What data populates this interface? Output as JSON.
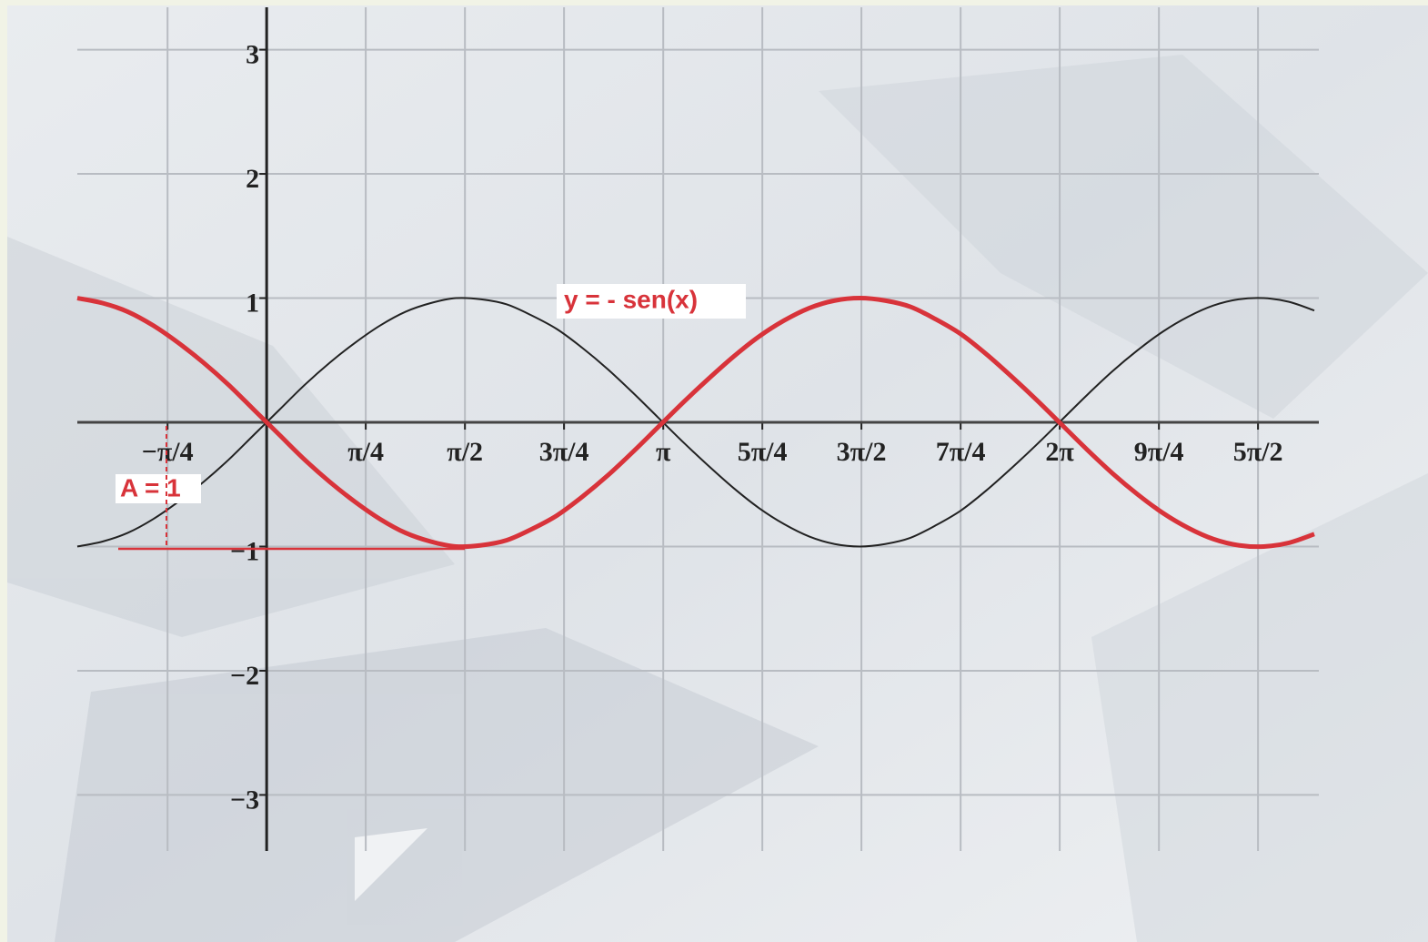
{
  "chart_data": {
    "type": "line",
    "x": [
      -1.5,
      -1.3,
      -1.1,
      -0.9,
      -0.7,
      -0.5,
      -0.3,
      -0.1,
      0.1,
      0.3,
      0.5,
      0.7,
      0.9,
      1.1,
      1.3,
      1.5,
      1.7,
      1.9,
      2.1,
      2.3,
      2.5,
      2.7,
      2.9,
      3.1,
      3.3,
      3.5,
      3.7,
      3.9,
      4.1,
      4.3,
      4.5,
      4.7,
      4.9,
      5.1,
      5.3,
      5.5,
      5.7,
      5.9,
      6.1,
      6.3,
      6.5,
      6.7,
      6.9,
      7.1,
      7.3,
      7.5,
      7.7,
      7.9,
      8.1,
      8.3
    ],
    "series": [
      {
        "color": "#222222",
        "values": [
          -1.0,
          -0.96,
          -0.89,
          -0.78,
          -0.64,
          -0.48,
          -0.3,
          -0.1,
          0.1,
          0.3,
          0.48,
          0.64,
          0.78,
          0.89,
          0.96,
          1.0,
          0.99,
          0.95,
          0.86,
          0.75,
          0.6,
          0.43,
          0.24,
          0.04,
          -0.16,
          -0.35,
          -0.53,
          -0.69,
          -0.82,
          -0.92,
          -0.98,
          -1.0,
          -0.98,
          -0.93,
          -0.83,
          -0.71,
          -0.55,
          -0.37,
          -0.18,
          0.02,
          0.22,
          0.41,
          0.58,
          0.73,
          0.85,
          0.94,
          0.99,
          1.0,
          0.97,
          0.9
        ]
      },
      {
        "color": "#d8333a",
        "values": [
          1.0,
          0.96,
          0.89,
          0.78,
          0.64,
          0.48,
          0.3,
          0.1,
          -0.1,
          -0.3,
          -0.48,
          -0.64,
          -0.78,
          -0.89,
          -0.96,
          -1.0,
          -0.99,
          -0.95,
          -0.86,
          -0.75,
          -0.6,
          -0.43,
          -0.24,
          -0.04,
          0.16,
          0.35,
          0.53,
          0.69,
          0.82,
          0.92,
          0.98,
          1.0,
          0.98,
          0.93,
          0.83,
          0.71,
          0.55,
          0.37,
          0.18,
          -0.02,
          -0.22,
          -0.41,
          -0.58,
          -0.73,
          -0.85,
          -0.94,
          -0.99,
          -1.0,
          -0.97,
          -0.9
        ]
      }
    ],
    "xlim": [
      -1.5,
      8.3
    ],
    "ylim": [
      -3.4,
      3.4
    ],
    "xticks": [
      {
        "value": -0.785,
        "label": "−π/4"
      },
      {
        "value": 0.785,
        "label": "π/4"
      },
      {
        "value": 1.571,
        "label": "π/2"
      },
      {
        "value": 2.356,
        "label": "3π/4"
      },
      {
        "value": 3.142,
        "label": "π"
      },
      {
        "value": 3.927,
        "label": "5π/4"
      },
      {
        "value": 4.712,
        "label": "3π/2"
      },
      {
        "value": 5.498,
        "label": "7π/4"
      },
      {
        "value": 6.283,
        "label": "2π"
      },
      {
        "value": 7.069,
        "label": "9π/4"
      },
      {
        "value": 7.854,
        "label": "5π/2"
      }
    ],
    "yticks": [
      {
        "value": -3,
        "label": "−3"
      },
      {
        "value": -2,
        "label": "−2"
      },
      {
        "value": -1,
        "label": "−1"
      },
      1,
      2,
      3
    ],
    "grid": true,
    "annotations": [
      "y = - sen(x)",
      "A = 1"
    ]
  }
}
